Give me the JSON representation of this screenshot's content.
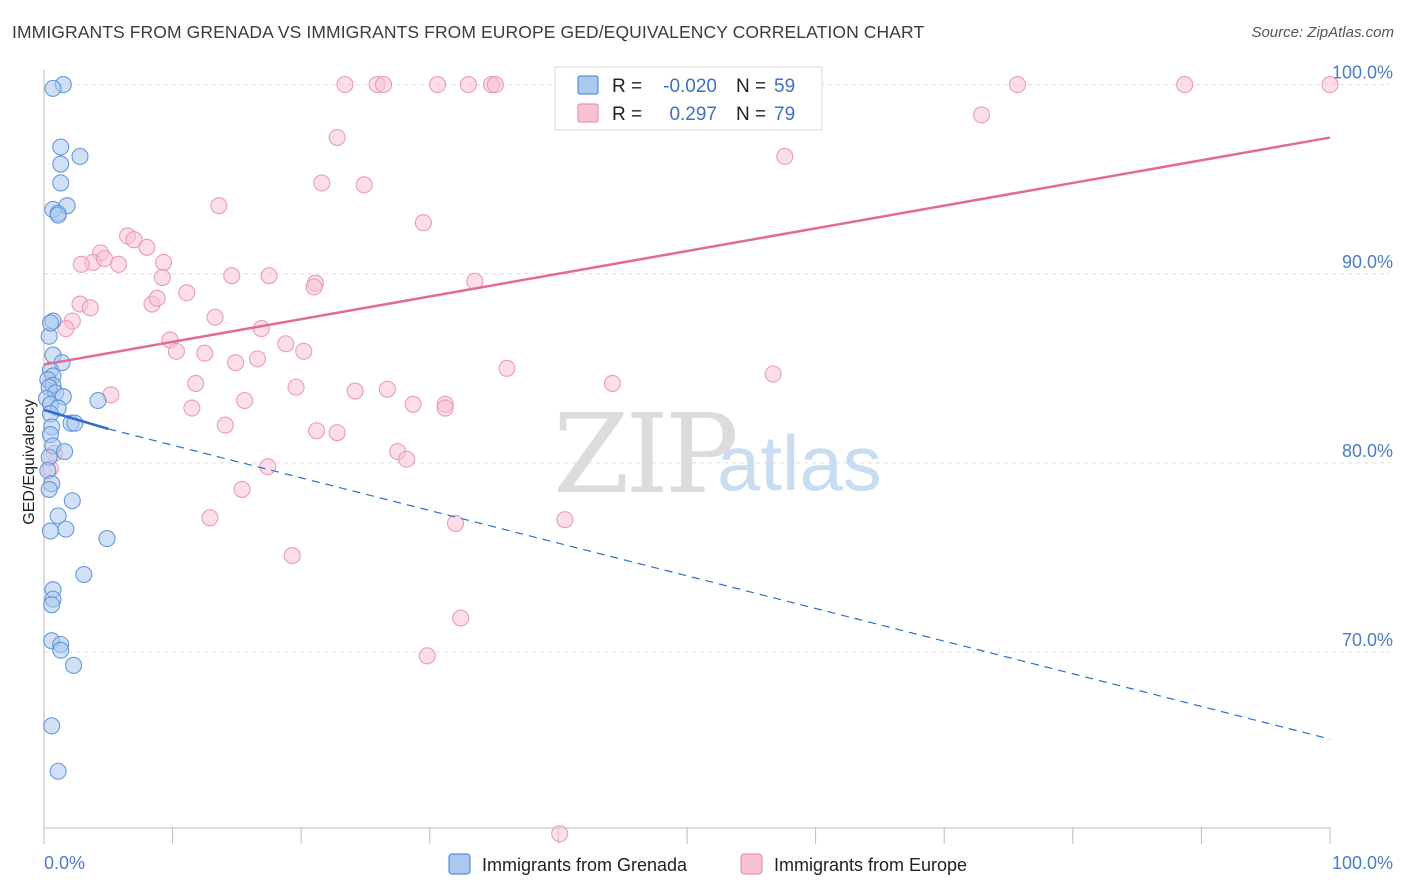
{
  "header": {
    "title": "IMMIGRANTS FROM GRENADA VS IMMIGRANTS FROM EUROPE GED/EQUIVALENCY CORRELATION CHART",
    "source": "Source: ZipAtlas.com"
  },
  "watermark": {
    "zip": "ZIP",
    "atlas": "atlas"
  },
  "stats_box": {
    "rows": [
      {
        "r_label": "R =",
        "r_value": "-0.020",
        "n_label": "N =",
        "n_value": "59",
        "color": "#7eb0ea"
      },
      {
        "r_label": "R =",
        "r_value": "0.297",
        "n_label": "N =",
        "n_value": "79",
        "color": "#f4a6bf"
      }
    ]
  },
  "colors": {
    "grenada_fill": "#a9c9f0",
    "grenada_stroke": "#5b8fd6",
    "grenada_line": "#2f6ccf",
    "europe_fill": "#f7c3d3",
    "europe_stroke": "#e994b1",
    "europe_line": "#e46a94",
    "grid": "#dddddd",
    "axis_text": "#4a7cc9"
  },
  "chart_data": {
    "type": "scatter",
    "title": "IMMIGRANTS FROM GRENADA VS IMMIGRANTS FROM EUROPE GED/EQUIVALENCY CORRELATION CHART",
    "xlabel": "",
    "ylabel": "GED/Equivalency",
    "xlim": [
      0,
      100
    ],
    "ylim": [
      60.7,
      101.3
    ],
    "x_tick_labels": [
      "0.0%",
      "100.0%"
    ],
    "y_ticks": [
      {
        "value": 70,
        "label": "70.0%"
      },
      {
        "value": 80,
        "label": "80.0%"
      },
      {
        "value": 90,
        "label": "90.0%"
      },
      {
        "value": 100,
        "label": "100.0%"
      }
    ],
    "legend": [
      "Immigrants from Grenada",
      "Immigrants from Europe"
    ],
    "series": [
      {
        "name": "Immigrants from Grenada",
        "r": -0.02,
        "n": 59,
        "trend_solid": {
          "x": [
            0,
            5
          ],
          "y": [
            82.8,
            81.8
          ]
        },
        "trend_dashed": {
          "x": [
            5,
            100
          ],
          "y": [
            81.8,
            65.4
          ]
        },
        "points": [
          [
            1.5,
            100
          ],
          [
            0.7,
            99.8
          ],
          [
            1.3,
            96.7
          ],
          [
            1.3,
            95.8
          ],
          [
            2.8,
            96.2
          ],
          [
            1.3,
            94.8
          ],
          [
            0.7,
            93.4
          ],
          [
            1.1,
            93.2
          ],
          [
            1.8,
            93.6
          ],
          [
            1.1,
            93.1
          ],
          [
            0.7,
            87.5
          ],
          [
            0.4,
            86.7
          ],
          [
            0.5,
            87.4
          ],
          [
            0.7,
            85.7
          ],
          [
            1.4,
            85.3
          ],
          [
            0.5,
            84.9
          ],
          [
            0.7,
            84.6
          ],
          [
            0.3,
            84.4
          ],
          [
            0.7,
            84.1
          ],
          [
            0.4,
            84.0
          ],
          [
            0.9,
            83.7
          ],
          [
            1.5,
            83.5
          ],
          [
            0.2,
            83.4
          ],
          [
            0.5,
            83.1
          ],
          [
            1.1,
            82.9
          ],
          [
            0.5,
            82.6
          ],
          [
            4.2,
            83.3
          ],
          [
            2.1,
            82.1
          ],
          [
            2.4,
            82.1
          ],
          [
            0.6,
            81.9
          ],
          [
            0.5,
            81.5
          ],
          [
            0.7,
            80.9
          ],
          [
            1.6,
            80.6
          ],
          [
            0.4,
            80.3
          ],
          [
            0.3,
            79.6
          ],
          [
            0.6,
            78.9
          ],
          [
            0.4,
            78.6
          ],
          [
            2.2,
            78.0
          ],
          [
            1.1,
            77.2
          ],
          [
            1.7,
            76.5
          ],
          [
            0.5,
            76.4
          ],
          [
            4.9,
            76.0
          ],
          [
            3.1,
            74.1
          ],
          [
            0.7,
            73.3
          ],
          [
            0.7,
            72.8
          ],
          [
            0.6,
            72.5
          ],
          [
            0.6,
            70.6
          ],
          [
            1.3,
            70.4
          ],
          [
            1.3,
            70.1
          ],
          [
            2.3,
            69.3
          ],
          [
            0.6,
            66.1
          ],
          [
            1.1,
            63.7
          ]
        ]
      },
      {
        "name": "Immigrants from Europe",
        "r": 0.297,
        "n": 79,
        "trend_solid": {
          "x": [
            0,
            100
          ],
          "y": [
            85.2,
            97.2
          ]
        },
        "points": [
          [
            23.4,
            100
          ],
          [
            25.9,
            100
          ],
          [
            26.4,
            100
          ],
          [
            30.6,
            100
          ],
          [
            33.0,
            100
          ],
          [
            34.8,
            100
          ],
          [
            35.1,
            100
          ],
          [
            75.7,
            100
          ],
          [
            88.7,
            100
          ],
          [
            100,
            100
          ],
          [
            72.9,
            98.4
          ],
          [
            22.8,
            97.2
          ],
          [
            57.6,
            96.2
          ],
          [
            21.6,
            94.8
          ],
          [
            24.9,
            94.7
          ],
          [
            13.6,
            93.6
          ],
          [
            29.5,
            92.7
          ],
          [
            6.5,
            92.0
          ],
          [
            7.0,
            91.8
          ],
          [
            8.0,
            91.4
          ],
          [
            4.4,
            91.1
          ],
          [
            3.8,
            90.6
          ],
          [
            2.9,
            90.5
          ],
          [
            4.7,
            90.8
          ],
          [
            9.3,
            90.6
          ],
          [
            5.8,
            90.5
          ],
          [
            14.6,
            89.9
          ],
          [
            17.5,
            89.9
          ],
          [
            9.2,
            89.8
          ],
          [
            21.1,
            89.5
          ],
          [
            21.0,
            89.3
          ],
          [
            33.5,
            89.6
          ],
          [
            11.1,
            89.0
          ],
          [
            8.4,
            88.4
          ],
          [
            2.8,
            88.4
          ],
          [
            3.6,
            88.2
          ],
          [
            8.8,
            88.7
          ],
          [
            2.2,
            87.5
          ],
          [
            13.3,
            87.7
          ],
          [
            1.7,
            87.1
          ],
          [
            16.9,
            87.1
          ],
          [
            9.8,
            86.5
          ],
          [
            18.8,
            86.3
          ],
          [
            20.2,
            85.9
          ],
          [
            10.3,
            85.9
          ],
          [
            12.5,
            85.8
          ],
          [
            16.6,
            85.5
          ],
          [
            14.9,
            85.3
          ],
          [
            36.0,
            85.0
          ],
          [
            56.7,
            84.7
          ],
          [
            11.8,
            84.2
          ],
          [
            44.2,
            84.2
          ],
          [
            19.6,
            84.0
          ],
          [
            24.2,
            83.8
          ],
          [
            26.7,
            83.9
          ],
          [
            5.2,
            83.6
          ],
          [
            15.6,
            83.3
          ],
          [
            28.7,
            83.1
          ],
          [
            31.2,
            83.1
          ],
          [
            31.2,
            82.9
          ],
          [
            11.5,
            82.9
          ],
          [
            21.2,
            81.7
          ],
          [
            22.8,
            81.6
          ],
          [
            14.1,
            82.0
          ],
          [
            27.5,
            80.6
          ],
          [
            28.2,
            80.2
          ],
          [
            0.8,
            80.5
          ],
          [
            17.4,
            79.8
          ],
          [
            0.5,
            79.7
          ],
          [
            15.4,
            78.6
          ],
          [
            12.9,
            77.1
          ],
          [
            32.0,
            76.8
          ],
          [
            40.5,
            77.0
          ],
          [
            19.3,
            75.1
          ],
          [
            32.4,
            71.8
          ],
          [
            29.8,
            69.8
          ],
          [
            40.1,
            60.4
          ]
        ]
      }
    ]
  }
}
